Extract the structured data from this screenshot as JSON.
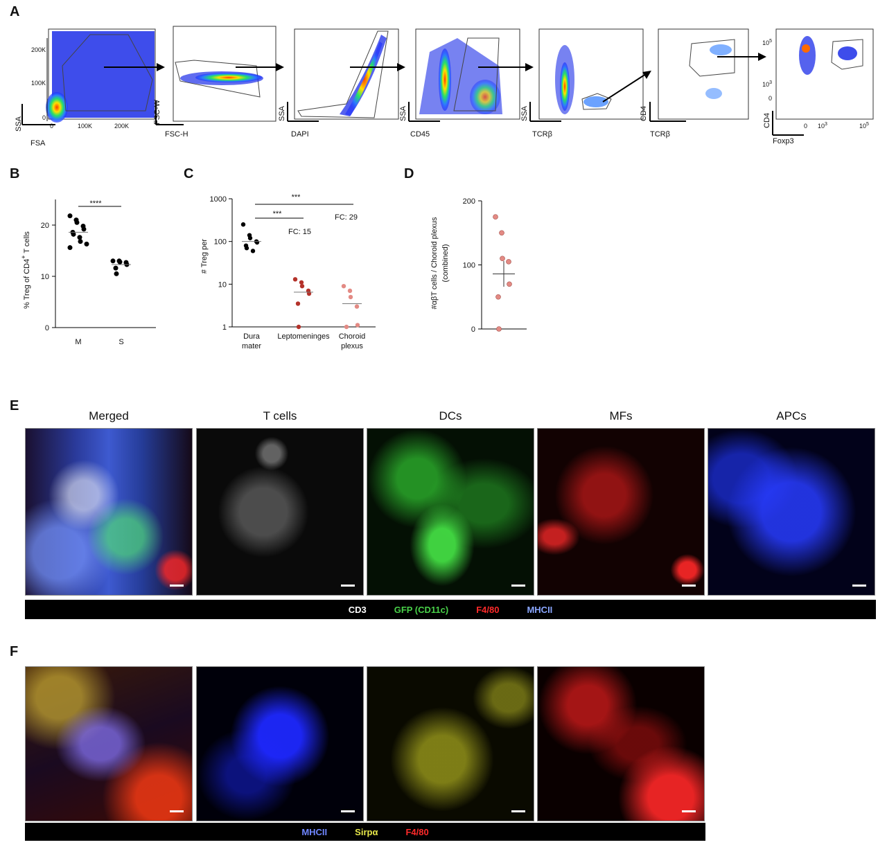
{
  "panels": {
    "A": {
      "letter": "A",
      "plots": [
        {
          "ylabel": "SSA",
          "xlabel": "FSA",
          "yticks": [
            "200K",
            "100K",
            "0"
          ],
          "xticks": [
            "0",
            "100K",
            "200K"
          ]
        },
        {
          "ylabel": "FSC-W",
          "xlabel": "FSC-H"
        },
        {
          "ylabel": "SSA",
          "xlabel": "DAPI"
        },
        {
          "ylabel": "SSA",
          "xlabel": "CD45"
        },
        {
          "ylabel": "SSA",
          "xlabel": "TCRβ"
        },
        {
          "ylabel": "CD4",
          "xlabel": "TCRβ"
        },
        {
          "ylabel": "CD4",
          "xlabel": "Foxp3",
          "yticks": [
            "10",
            "10",
            "0"
          ],
          "yexp": [
            "5",
            "3",
            ""
          ],
          "xticks": [
            "0",
            "10",
            "10"
          ],
          "xexp": [
            "",
            "3",
            "5"
          ]
        }
      ]
    },
    "B": {
      "letter": "B",
      "ylabel": "% Treg of CD4",
      "ylabel_sup": "+",
      "ylabel_tail": " T cells",
      "sig": "****"
    },
    "C": {
      "letter": "C",
      "ylabel": "# Treg per",
      "sig1": "***",
      "sig2": "***",
      "fc1": "FC: 15",
      "fc2": "FC: 29"
    },
    "D": {
      "letter": "D",
      "ylabel_line1": "#αβT cells  / Choroid plexus",
      "ylabel_line2": "(combined)"
    },
    "E": {
      "letter": "E",
      "titles": [
        "Merged",
        "T cells",
        "DCs",
        "MFs",
        "APCs"
      ],
      "legend": [
        {
          "text": "CD3",
          "color": "#ffffff"
        },
        {
          "text": "GFP (CD11c)",
          "color": "#49d149"
        },
        {
          "text": "F4/80",
          "color": "#ff2a2a"
        },
        {
          "text": "MHCII",
          "color": "#8aa6ff"
        }
      ]
    },
    "F": {
      "letter": "F",
      "legend": [
        {
          "text": "MHCII",
          "color": "#6f86ff"
        },
        {
          "text": "Sirpα",
          "color": "#e8e84a"
        },
        {
          "text": "F4/80",
          "color": "#ff2a2a"
        }
      ]
    }
  },
  "chart_data": [
    {
      "type": "scatter",
      "panel": "B",
      "categories": [
        "M",
        "S"
      ],
      "ylim": [
        0,
        25
      ],
      "yticks": [
        0,
        10,
        20
      ],
      "series": [
        {
          "category": "M",
          "values": [
            21.8,
            21,
            20.5,
            19.8,
            19.2,
            18.6,
            18.2,
            17.6,
            16.8,
            16.3,
            15.6
          ],
          "mean": 18.6
        },
        {
          "category": "S",
          "values": [
            13,
            13,
            12.8,
            12.7,
            12.3,
            11.6,
            10.5
          ],
          "mean": 12.3
        }
      ],
      "significance": "****"
    },
    {
      "type": "scatter",
      "panel": "C",
      "yscale": "log",
      "ylim": [
        1,
        1000
      ],
      "yticks": [
        1,
        10,
        100,
        1000
      ],
      "categories": [
        "Dura mater",
        "Leptomeninges",
        "Choroid plexus"
      ],
      "series": [
        {
          "category": "Dura mater",
          "values": [
            250,
            140,
            120,
            100,
            95,
            80,
            70,
            60
          ],
          "mean": 100,
          "color": "#000000"
        },
        {
          "category": "Leptomeninges",
          "values": [
            13,
            11,
            9,
            7,
            6,
            3.5,
            1
          ],
          "mean": 6.5,
          "color": "#b4322a"
        },
        {
          "category": "Choroid plexus",
          "values": [
            9,
            7,
            5,
            3,
            1.1,
            1
          ],
          "mean": 3.5,
          "color": "#e38a84"
        }
      ],
      "annotations": [
        "***",
        "***",
        "FC: 15",
        "FC: 29"
      ]
    },
    {
      "type": "scatter",
      "panel": "D",
      "ylim": [
        0,
        200
      ],
      "yticks": [
        0,
        100,
        200
      ],
      "series": [
        {
          "values": [
            175,
            150,
            110,
            105,
            70,
            50,
            0
          ],
          "mean": 86,
          "color": "#e38a84"
        }
      ]
    }
  ]
}
